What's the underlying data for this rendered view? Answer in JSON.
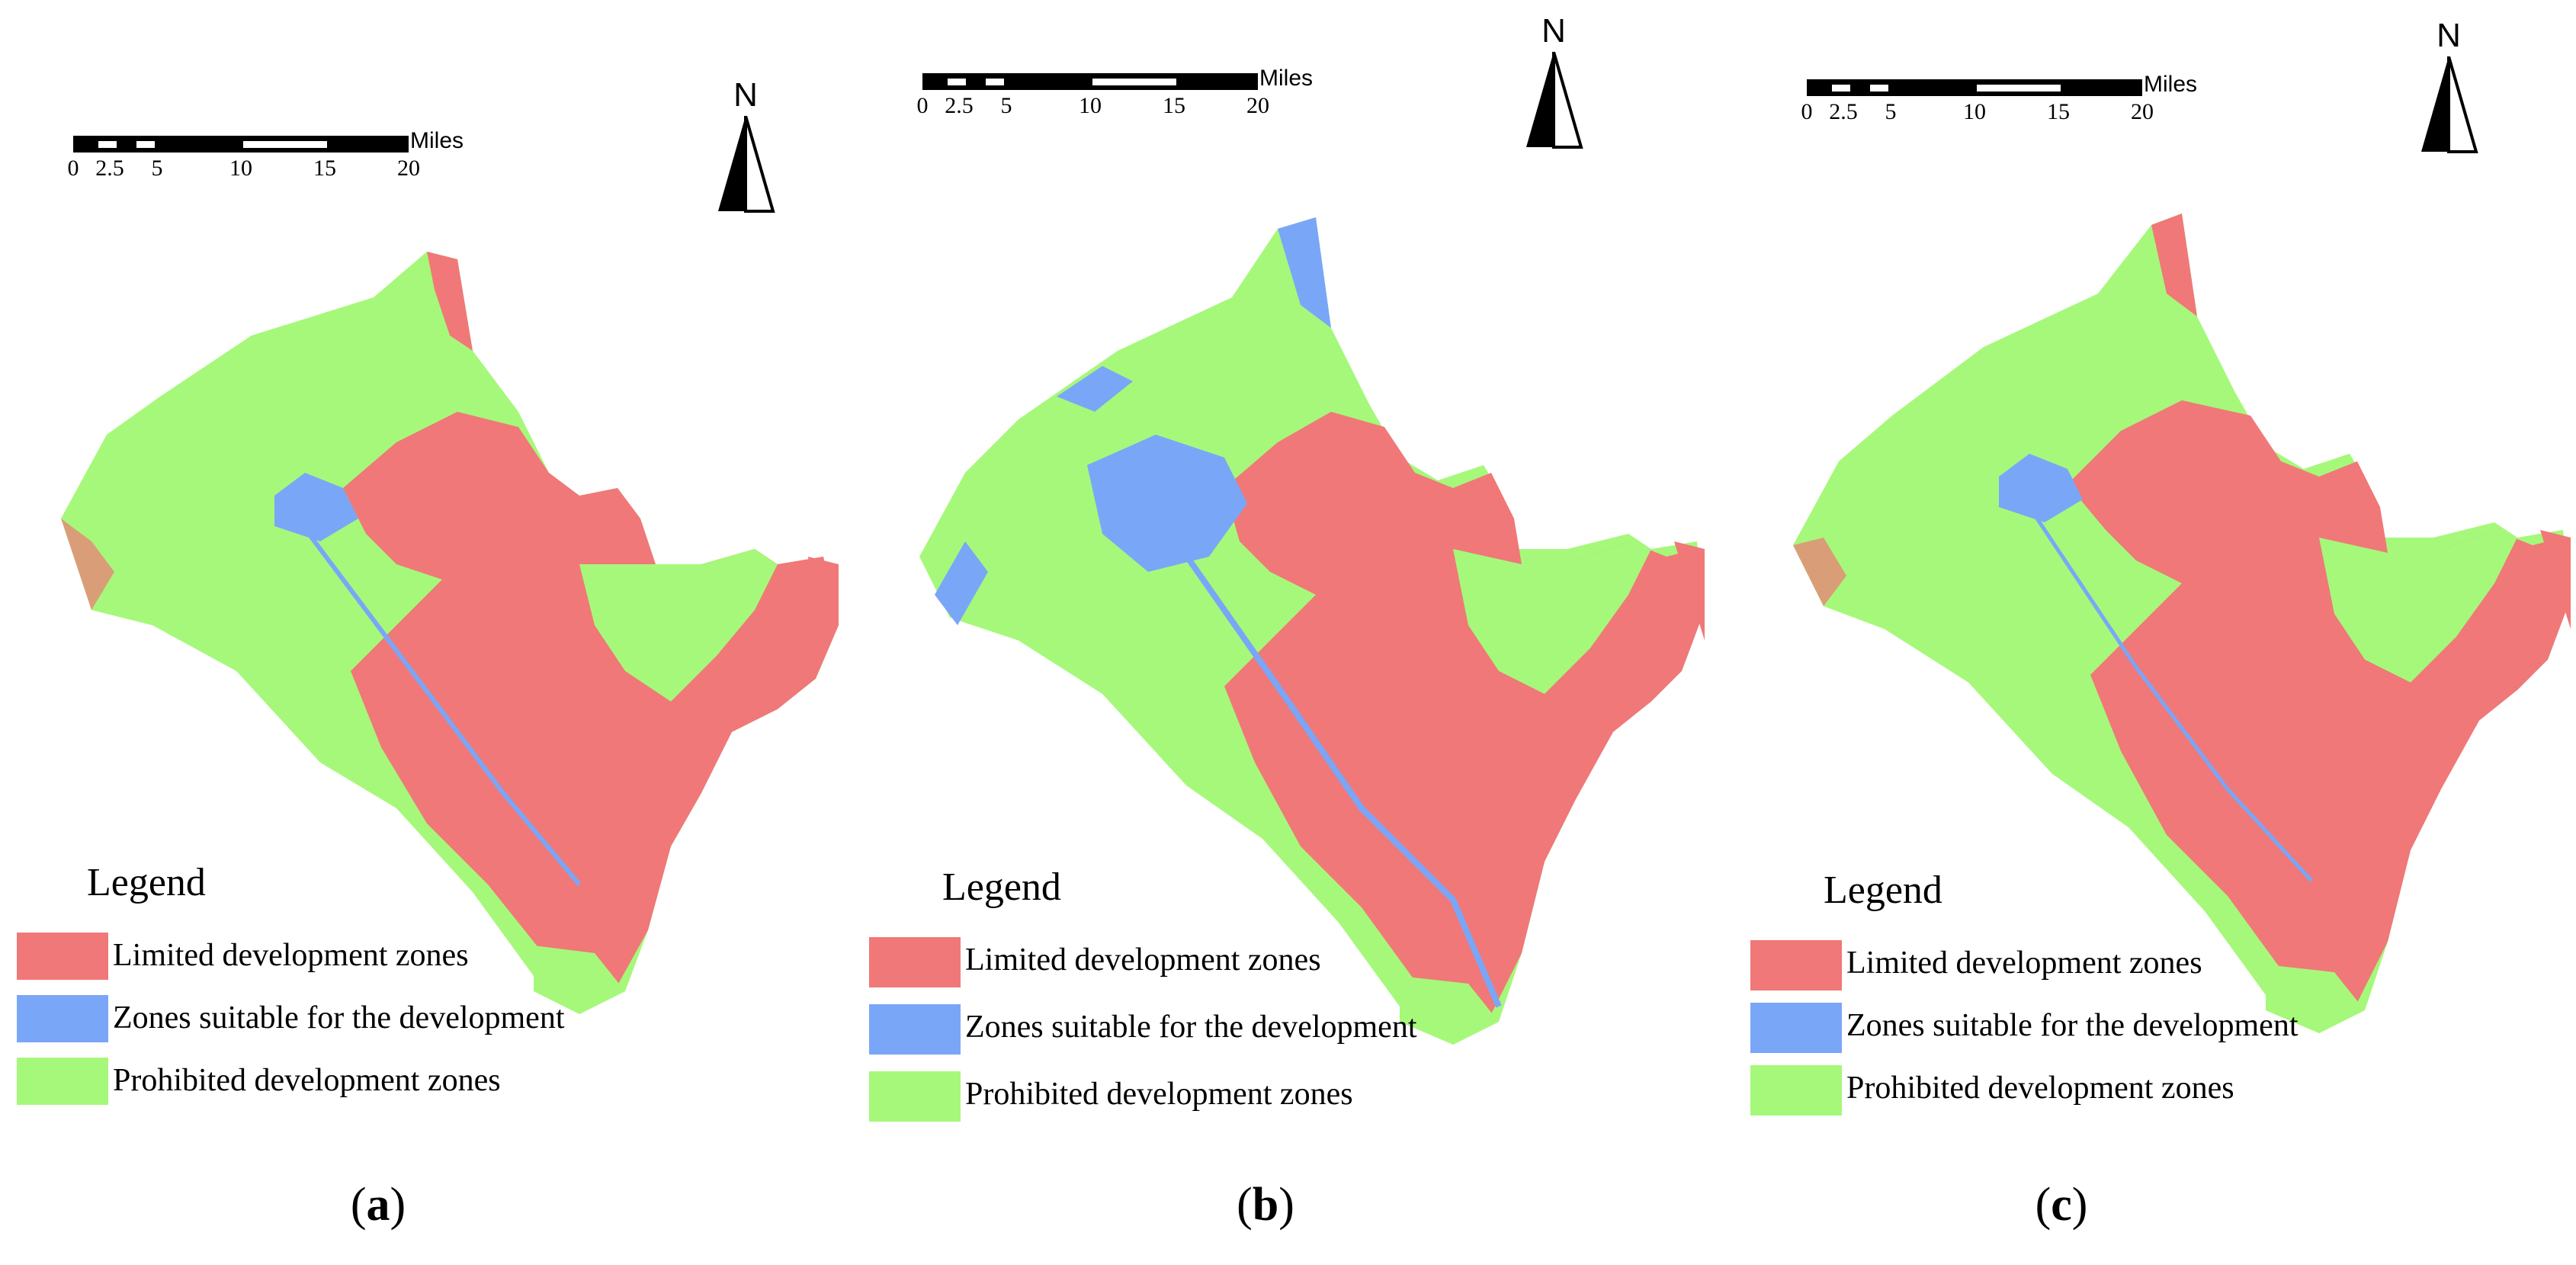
{
  "colors": {
    "limited": "#f07878",
    "suitable": "#7aa6f8",
    "prohibited": "#a6f87a"
  },
  "scale_bar": {
    "unit": "Miles",
    "ticks": [
      "0",
      "2.5",
      "5",
      "10",
      "15",
      "20"
    ]
  },
  "north_arrow": {
    "letter": "N",
    "icon": "north-arrow-icon"
  },
  "legend": {
    "title": "Legend",
    "items": [
      {
        "label": "Limited development zones",
        "color_key": "limited"
      },
      {
        "label": "Zones suitable for the development",
        "color_key": "suitable"
      },
      {
        "label": "Prohibited development zones",
        "color_key": "prohibited"
      }
    ]
  },
  "panels": [
    {
      "open": "(",
      "letter": "a",
      "close": ")"
    },
    {
      "open": "(",
      "letter": "b",
      "close": ")"
    },
    {
      "open": "(",
      "letter": "c",
      "close": ")"
    }
  ]
}
